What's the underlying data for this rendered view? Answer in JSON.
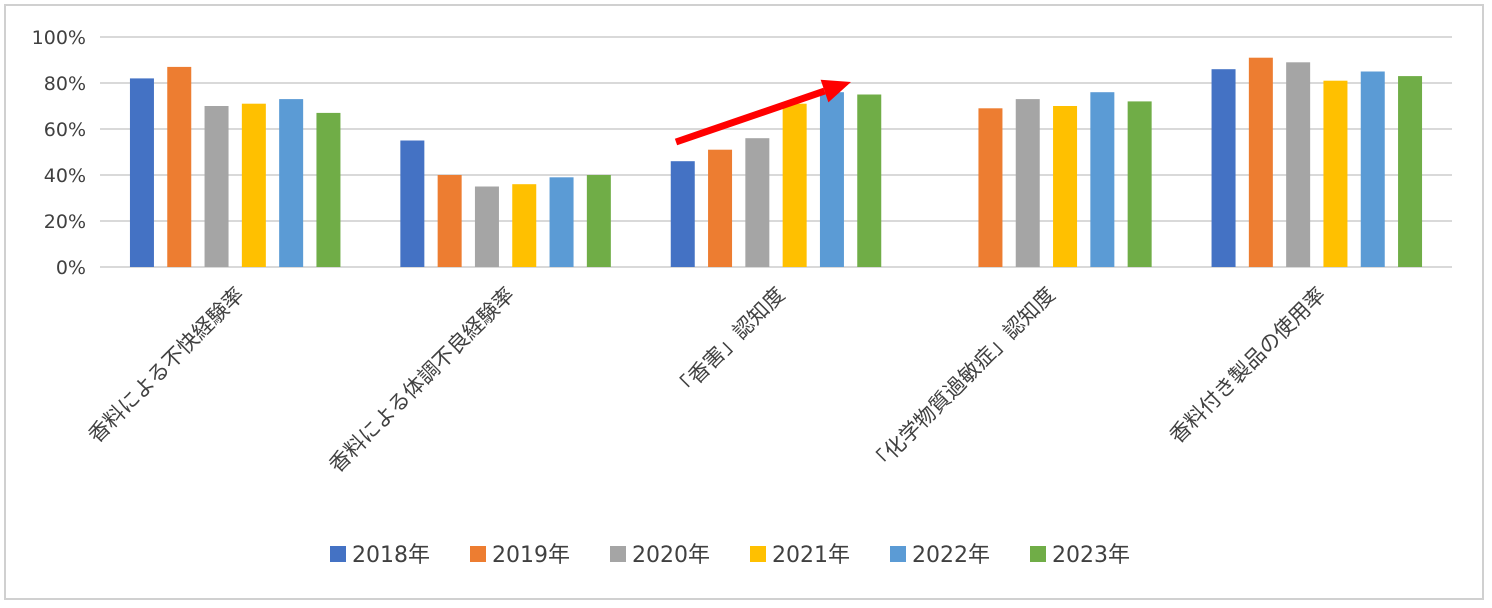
{
  "chart_data": {
    "type": "bar",
    "title": "",
    "xlabel": "",
    "ylabel": "",
    "ylim": [
      0,
      1
    ],
    "yticks": [
      "0%",
      "20%",
      "40%",
      "60%",
      "80%",
      "100%"
    ],
    "grid": true,
    "legend_position": "bottom",
    "categories": [
      "香料による不快経験率",
      "香料による体調不良経験率",
      "「香害」認知度",
      "「化学物質過敏症」認知度",
      "香料付き製品の使用率"
    ],
    "series": [
      {
        "name": "2018年",
        "color": "#4472C4",
        "values": [
          0.82,
          0.55,
          0.46,
          null,
          0.86
        ]
      },
      {
        "name": "2019年",
        "color": "#ED7D31",
        "values": [
          0.87,
          0.4,
          0.51,
          0.69,
          0.91
        ]
      },
      {
        "name": "2020年",
        "color": "#A5A5A5",
        "values": [
          0.7,
          0.35,
          0.56,
          0.73,
          0.89
        ]
      },
      {
        "name": "2021年",
        "color": "#FFC000",
        "values": [
          0.71,
          0.36,
          0.71,
          0.7,
          0.81
        ]
      },
      {
        "name": "2022年",
        "color": "#5B9BD5",
        "values": [
          0.73,
          0.39,
          0.76,
          0.76,
          0.85
        ]
      },
      {
        "name": "2023年",
        "color": "#70AD47",
        "values": [
          0.67,
          0.4,
          0.75,
          0.72,
          0.83
        ]
      }
    ],
    "annotation": {
      "type": "arrow",
      "color": "#FF0000",
      "category": "「香害」認知度",
      "trend": "up"
    }
  }
}
